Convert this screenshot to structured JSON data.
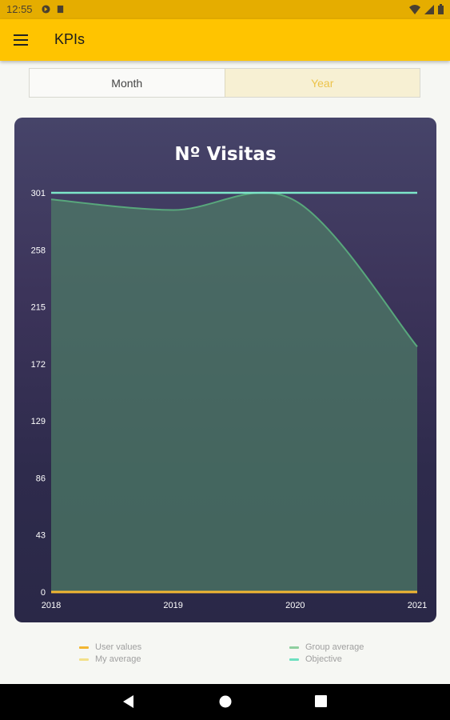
{
  "status_bar": {
    "time": "12:55",
    "left_icons": [
      "sync-icon",
      "sd-card-icon"
    ],
    "right_icons": [
      "wifi-icon",
      "signal-icon",
      "battery-icon"
    ]
  },
  "app_bar": {
    "title": "KPIs",
    "menu_icon": "hamburger-menu-icon"
  },
  "period_tabs": [
    {
      "label": "Month",
      "selected": false
    },
    {
      "label": "Year",
      "selected": true
    }
  ],
  "chart_data": {
    "type": "area",
    "title": "Nº Visitas",
    "x": [
      "2018",
      "2019",
      "2020",
      "2021"
    ],
    "yticks": [
      "301",
      "258",
      "215",
      "172",
      "129",
      "86",
      "43",
      "0"
    ],
    "ylim": [
      0,
      301
    ],
    "series": [
      {
        "name": "User values",
        "values": [
          0,
          0,
          0,
          0
        ],
        "color": "#f2b632"
      },
      {
        "name": "Group average",
        "values": [
          296,
          288,
          295,
          185
        ],
        "color": "#58a77c"
      },
      {
        "name": "My average",
        "values": [
          0,
          0,
          0,
          0
        ],
        "color": "#f2e08a"
      },
      {
        "name": "Objective",
        "values": [
          301,
          301,
          301,
          301
        ],
        "color": "#7de6c9"
      }
    ],
    "legend_position": "bottom",
    "grid": false
  },
  "legend": [
    {
      "label": "User values",
      "color": "#f2b632"
    },
    {
      "label": "Group average",
      "color": "#8fcf9f"
    },
    {
      "label": "My average",
      "color": "#f2e08a"
    },
    {
      "label": "Objective",
      "color": "#6de0c0"
    }
  ],
  "nav_bar": {
    "buttons": [
      "back-icon",
      "home-icon",
      "recents-icon"
    ]
  }
}
